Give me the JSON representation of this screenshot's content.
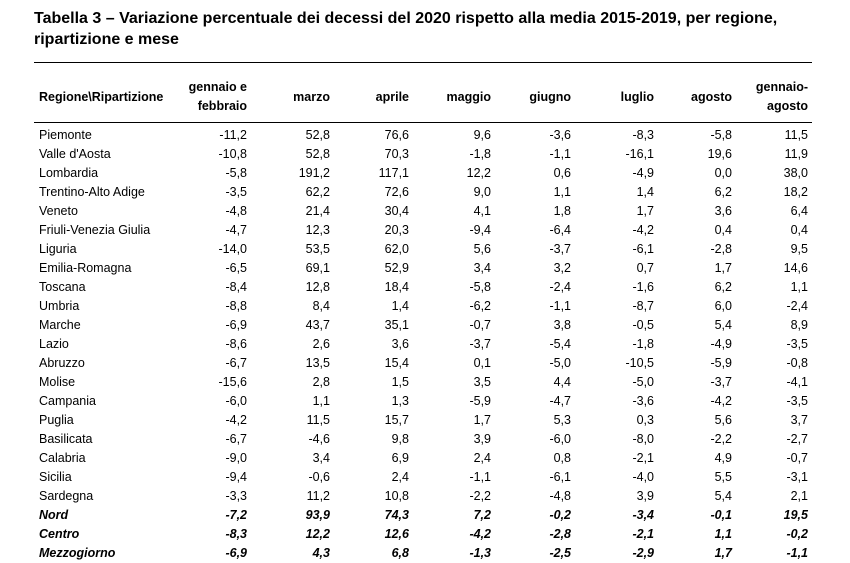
{
  "title": "Tabella  3 – Variazione percentuale dei decessi del 2020 rispetto alla media 2015-2019, per regione, ripartizione e mese",
  "columns": [
    {
      "line1": "Regione\\Ripartizione",
      "line2": ""
    },
    {
      "line1": "gennaio e",
      "line2": "febbraio"
    },
    {
      "line1": "marzo",
      "line2": ""
    },
    {
      "line1": "aprile",
      "line2": ""
    },
    {
      "line1": "maggio",
      "line2": ""
    },
    {
      "line1": "giugno",
      "line2": ""
    },
    {
      "line1": "luglio",
      "line2": ""
    },
    {
      "line1": "agosto",
      "line2": ""
    },
    {
      "line1": "gennaio-",
      "line2": "agosto"
    }
  ],
  "rows": [
    {
      "label": "Piemonte",
      "values": [
        "-11,2",
        "52,8",
        "76,6",
        "9,6",
        "-3,6",
        "-8,3",
        "-5,8",
        "11,5"
      ]
    },
    {
      "label": "Valle d'Aosta",
      "values": [
        "-10,8",
        "52,8",
        "70,3",
        "-1,8",
        "-1,1",
        "-16,1",
        "19,6",
        "11,9"
      ]
    },
    {
      "label": "Lombardia",
      "values": [
        "-5,8",
        "191,2",
        "117,1",
        "12,2",
        "0,6",
        "-4,9",
        "0,0",
        "38,0"
      ]
    },
    {
      "label": "Trentino-Alto Adige",
      "values": [
        "-3,5",
        "62,2",
        "72,6",
        "9,0",
        "1,1",
        "1,4",
        "6,2",
        "18,2"
      ]
    },
    {
      "label": "Veneto",
      "values": [
        "-4,8",
        "21,4",
        "30,4",
        "4,1",
        "1,8",
        "1,7",
        "3,6",
        "6,4"
      ]
    },
    {
      "label": "Friuli-Venezia Giulia",
      "values": [
        "-4,7",
        "12,3",
        "20,3",
        "-9,4",
        "-6,4",
        "-4,2",
        "0,4",
        "0,4"
      ]
    },
    {
      "label": "Liguria",
      "values": [
        "-14,0",
        "53,5",
        "62,0",
        "5,6",
        "-3,7",
        "-6,1",
        "-2,8",
        "9,5"
      ]
    },
    {
      "label": "Emilia-Romagna",
      "values": [
        "-6,5",
        "69,1",
        "52,9",
        "3,4",
        "3,2",
        "0,7",
        "1,7",
        "14,6"
      ]
    },
    {
      "label": "Toscana",
      "values": [
        "-8,4",
        "12,8",
        "18,4",
        "-5,8",
        "-2,4",
        "-1,6",
        "6,2",
        "1,1"
      ]
    },
    {
      "label": "Umbria",
      "values": [
        "-8,8",
        "8,4",
        "1,4",
        "-6,2",
        "-1,1",
        "-8,7",
        "6,0",
        "-2,4"
      ]
    },
    {
      "label": "Marche",
      "values": [
        "-6,9",
        "43,7",
        "35,1",
        "-0,7",
        "3,8",
        "-0,5",
        "5,4",
        "8,9"
      ]
    },
    {
      "label": "Lazio",
      "values": [
        "-8,6",
        "2,6",
        "3,6",
        "-3,7",
        "-5,4",
        "-1,8",
        "-4,9",
        "-3,5"
      ]
    },
    {
      "label": "Abruzzo",
      "values": [
        "-6,7",
        "13,5",
        "15,4",
        "0,1",
        "-5,0",
        "-10,5",
        "-5,9",
        "-0,8"
      ]
    },
    {
      "label": "Molise",
      "values": [
        "-15,6",
        "2,8",
        "1,5",
        "3,5",
        "4,4",
        "-5,0",
        "-3,7",
        "-4,1"
      ]
    },
    {
      "label": "Campania",
      "values": [
        "-6,0",
        "1,1",
        "1,3",
        "-5,9",
        "-4,7",
        "-3,6",
        "-4,2",
        "-3,5"
      ]
    },
    {
      "label": "Puglia",
      "values": [
        "-4,2",
        "11,5",
        "15,7",
        "1,7",
        "5,3",
        "0,3",
        "5,6",
        "3,7"
      ]
    },
    {
      "label": "Basilicata",
      "values": [
        "-6,7",
        "-4,6",
        "9,8",
        "3,9",
        "-6,0",
        "-8,0",
        "-2,2",
        "-2,7"
      ]
    },
    {
      "label": "Calabria",
      "values": [
        "-9,0",
        "3,4",
        "6,9",
        "2,4",
        "0,8",
        "-2,1",
        "4,9",
        "-0,7"
      ]
    },
    {
      "label": "Sicilia",
      "values": [
        "-9,4",
        "-0,6",
        "2,4",
        "-1,1",
        "-6,1",
        "-4,0",
        "5,5",
        "-3,1"
      ]
    },
    {
      "label": "Sardegna",
      "values": [
        "-3,3",
        "11,2",
        "10,8",
        "-2,2",
        "-4,8",
        "3,9",
        "5,4",
        "2,1"
      ]
    },
    {
      "label": "Nord",
      "aggregate": true,
      "values": [
        "-7,2",
        "93,9",
        "74,3",
        "7,2",
        "-0,2",
        "-3,4",
        "-0,1",
        "19,5"
      ]
    },
    {
      "label": "Centro",
      "aggregate": true,
      "values": [
        "-8,3",
        "12,2",
        "12,6",
        "-4,2",
        "-2,8",
        "-2,1",
        "1,1",
        "-0,2"
      ]
    },
    {
      "label": "Mezzogiorno",
      "aggregate": true,
      "values": [
        "-6,9",
        "4,3",
        "6,8",
        "-1,3",
        "-2,5",
        "-2,9",
        "1,7",
        "-1,1"
      ]
    }
  ]
}
